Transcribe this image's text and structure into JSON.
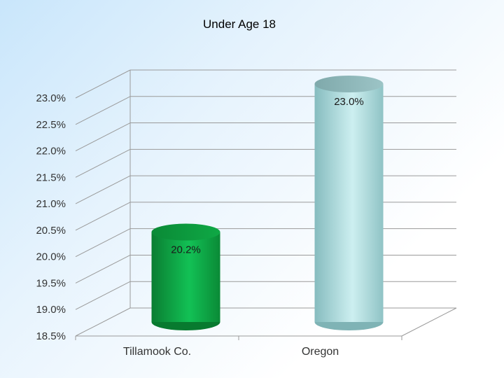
{
  "chart_data": {
    "type": "bar",
    "title": "Under Age 18",
    "categories": [
      "Tillamook Co.",
      "Oregon"
    ],
    "series": [
      {
        "values": [
          20.2,
          23.0
        ]
      }
    ],
    "data_labels": [
      "20.2%",
      "23.0%"
    ],
    "ylim": [
      18.5,
      23.0
    ],
    "ytick_values": [
      18.5,
      19.0,
      19.5,
      20.0,
      20.5,
      21.0,
      21.5,
      22.0,
      22.5,
      23.0
    ],
    "ytick_labels": [
      "18.5%",
      "19.0%",
      "19.5%",
      "20.0%",
      "20.5%",
      "21.0%",
      "21.5%",
      "22.0%",
      "22.5%",
      "23.0%"
    ],
    "grid": true,
    "legend": "none",
    "bar_shape": "cylinder",
    "colors": {
      "Tillamook Co.": "#0b9a3e",
      "Oregon": "#a9dcdc",
      "gridline": "#9a9a9a"
    }
  }
}
